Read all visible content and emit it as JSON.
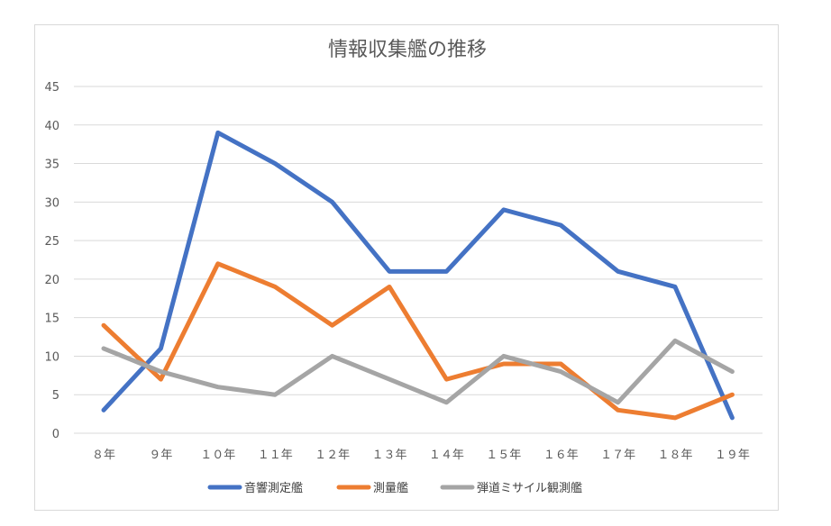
{
  "chart_data": {
    "type": "line",
    "title": "情報収集艦の推移",
    "xlabel": "",
    "ylabel": "",
    "categories": [
      "８年",
      "９年",
      "１０年",
      "１１年",
      "１２年",
      "１３年",
      "１４年",
      "１５年",
      "１６年",
      "１７年",
      "１８年",
      "１９年"
    ],
    "ylim": [
      0,
      45
    ],
    "yticks": [
      "0",
      "5",
      "10",
      "15",
      "20",
      "25",
      "30",
      "35",
      "40",
      "45"
    ],
    "grid": true,
    "legend_position": "bottom",
    "series": [
      {
        "name": "音響測定艦",
        "color": "#4472C4",
        "values": [
          3,
          11,
          39,
          35,
          30,
          21,
          21,
          29,
          27,
          21,
          19,
          2
        ]
      },
      {
        "name": "測量艦",
        "color": "#ED7D31",
        "values": [
          14,
          7,
          22,
          19,
          14,
          19,
          7,
          9,
          9,
          3,
          2,
          5
        ]
      },
      {
        "name": "弾道ミサイル観測艦",
        "color": "#A5A5A5",
        "values": [
          11,
          8,
          6,
          5,
          10,
          7,
          4,
          10,
          8,
          4,
          12,
          8
        ]
      }
    ]
  }
}
